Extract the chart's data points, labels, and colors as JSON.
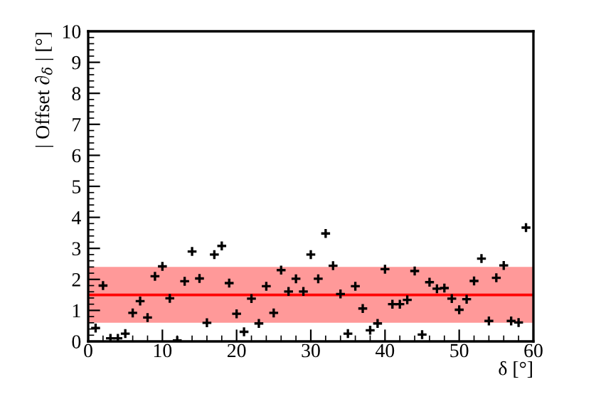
{
  "chart_data": {
    "type": "scatter",
    "xlabel": "δ [°]",
    "ylabel": "| Offset ∂$_{δ}$ | [°]",
    "x": [
      1,
      2,
      3,
      4,
      5,
      6,
      7,
      8,
      9,
      10,
      11,
      12,
      13,
      14,
      15,
      16,
      17,
      18,
      19,
      20,
      21,
      22,
      23,
      24,
      25,
      26,
      27,
      28,
      29,
      30,
      31,
      32,
      33,
      34,
      35,
      36,
      37,
      38,
      39,
      40,
      41,
      42,
      43,
      44,
      45,
      46,
      47,
      48,
      49,
      50,
      51,
      52,
      53,
      54,
      55,
      56,
      57,
      58,
      59
    ],
    "series": [
      {
        "color": "#000000",
        "values": [
          0.43,
          1.8,
          0.1,
          0.1,
          0.25,
          0.92,
          1.3,
          0.77,
          2.1,
          2.42,
          1.39,
          0.03,
          1.94,
          2.9,
          2.03,
          0.6,
          2.8,
          3.08,
          1.88,
          0.89,
          0.31,
          1.38,
          0.58,
          1.78,
          0.92,
          2.3,
          1.61,
          2.02,
          1.61,
          2.8,
          2.02,
          3.48,
          2.44,
          1.53,
          0.25,
          1.78,
          1.06,
          0.36,
          0.58,
          2.33,
          1.2,
          1.2,
          1.34,
          2.27,
          0.22,
          1.91,
          1.7,
          1.72,
          1.38,
          1.02,
          1.36,
          1.95,
          2.67,
          0.66,
          2.05,
          2.45,
          0.66,
          0.61,
          3.67
        ]
      }
    ],
    "marker": "cross",
    "xlim": [
      0,
      60
    ],
    "xticks": [
      0,
      10,
      20,
      30,
      40,
      50,
      60
    ],
    "ylim": [
      0,
      10
    ],
    "yticks": [
      0,
      1,
      2,
      3,
      4,
      5,
      6,
      7,
      8,
      9,
      10
    ],
    "ref_lines": [
      {
        "axis": "y",
        "value": 1.5,
        "color": "#ff0000"
      }
    ],
    "bands": [
      {
        "axis": "y",
        "from": 0.6,
        "to": 2.4,
        "color": "#ff9999"
      }
    ],
    "grid": false
  }
}
